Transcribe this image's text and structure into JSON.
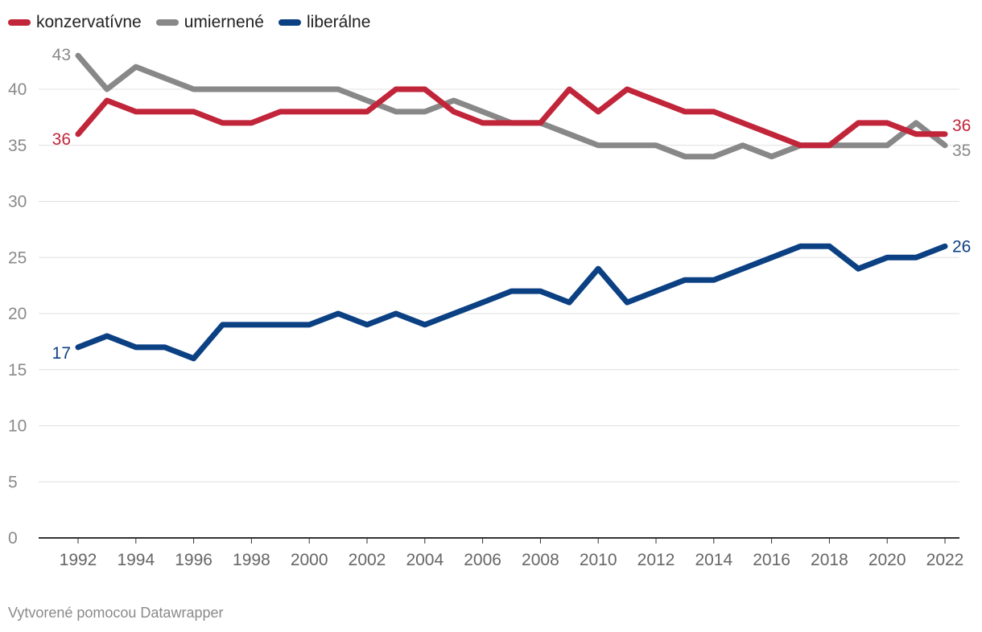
{
  "chart_data": {
    "type": "line",
    "x": [
      1992,
      1993,
      1994,
      1995,
      1996,
      1997,
      1998,
      1999,
      2000,
      2001,
      2002,
      2003,
      2004,
      2005,
      2006,
      2007,
      2008,
      2009,
      2010,
      2011,
      2012,
      2013,
      2014,
      2015,
      2016,
      2017,
      2018,
      2019,
      2020,
      2021,
      2022
    ],
    "x_ticks": [
      "1992",
      "1994",
      "1996",
      "1998",
      "2000",
      "2002",
      "2004",
      "2006",
      "2008",
      "2010",
      "2012",
      "2014",
      "2016",
      "2018",
      "2020",
      "2022"
    ],
    "y_ticks": [
      "0",
      "5",
      "10",
      "15",
      "20",
      "25",
      "30",
      "35",
      "40"
    ],
    "ylim": [
      0,
      43
    ],
    "grid": true,
    "legend_position": "top-left",
    "series": [
      {
        "name": "konzervatívne",
        "color": "#c1253a",
        "start_label": "36",
        "end_label": "36",
        "values": [
          36,
          39,
          38,
          38,
          38,
          37,
          37,
          38,
          38,
          38,
          38,
          40,
          40,
          38,
          37,
          37,
          37,
          40,
          38,
          40,
          39,
          38,
          38,
          37,
          36,
          35,
          35,
          37,
          37,
          36,
          36
        ]
      },
      {
        "name": "umiernené",
        "color": "#888888",
        "start_label": "43",
        "end_label": "35",
        "values": [
          43,
          40,
          42,
          41,
          40,
          40,
          40,
          40,
          40,
          40,
          39,
          38,
          38,
          39,
          38,
          37,
          37,
          36,
          35,
          35,
          35,
          34,
          34,
          35,
          34,
          35,
          35,
          35,
          35,
          37,
          35
        ]
      },
      {
        "name": "liberálne",
        "color": "#0b4083",
        "start_label": "17",
        "end_label": "26",
        "values": [
          17,
          18,
          17,
          17,
          16,
          19,
          19,
          19,
          19,
          20,
          19,
          20,
          19,
          20,
          21,
          22,
          22,
          21,
          24,
          21,
          22,
          23,
          23,
          24,
          25,
          26,
          26,
          24,
          25,
          25,
          26
        ]
      }
    ]
  },
  "footer": {
    "credit": "Vytvorené pomocou Datawrapper"
  }
}
